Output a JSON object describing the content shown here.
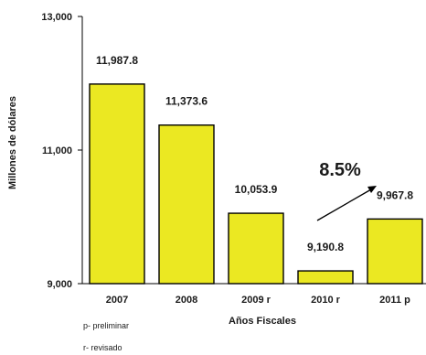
{
  "chart_data": {
    "type": "bar",
    "categories": [
      "2007",
      "2008",
      "2009 r",
      "2010 r",
      "2011 p"
    ],
    "values": [
      11987.8,
      11373.6,
      10053.9,
      9190.8,
      9967.8
    ],
    "value_labels": [
      "11,987.8",
      "11,373.6",
      "10,053.9",
      "9,190.8",
      "9,967.8"
    ],
    "ylabel": "Millones de dólares",
    "xlabel": "Años Fiscales",
    "ylim": [
      9000,
      13000
    ],
    "yticks": [
      9000,
      11000,
      13000
    ],
    "ytick_labels": [
      "9,000",
      "11,000",
      "13,000"
    ],
    "grid": false,
    "bar_color": "#ebe822",
    "bar_edge_color": "#000000",
    "annotation": {
      "text": "8.5%",
      "arrow": "up-right",
      "between": [
        "2010 r",
        "2011 p"
      ]
    },
    "notes": [
      "p- preliminar",
      "r- revisado"
    ]
  }
}
